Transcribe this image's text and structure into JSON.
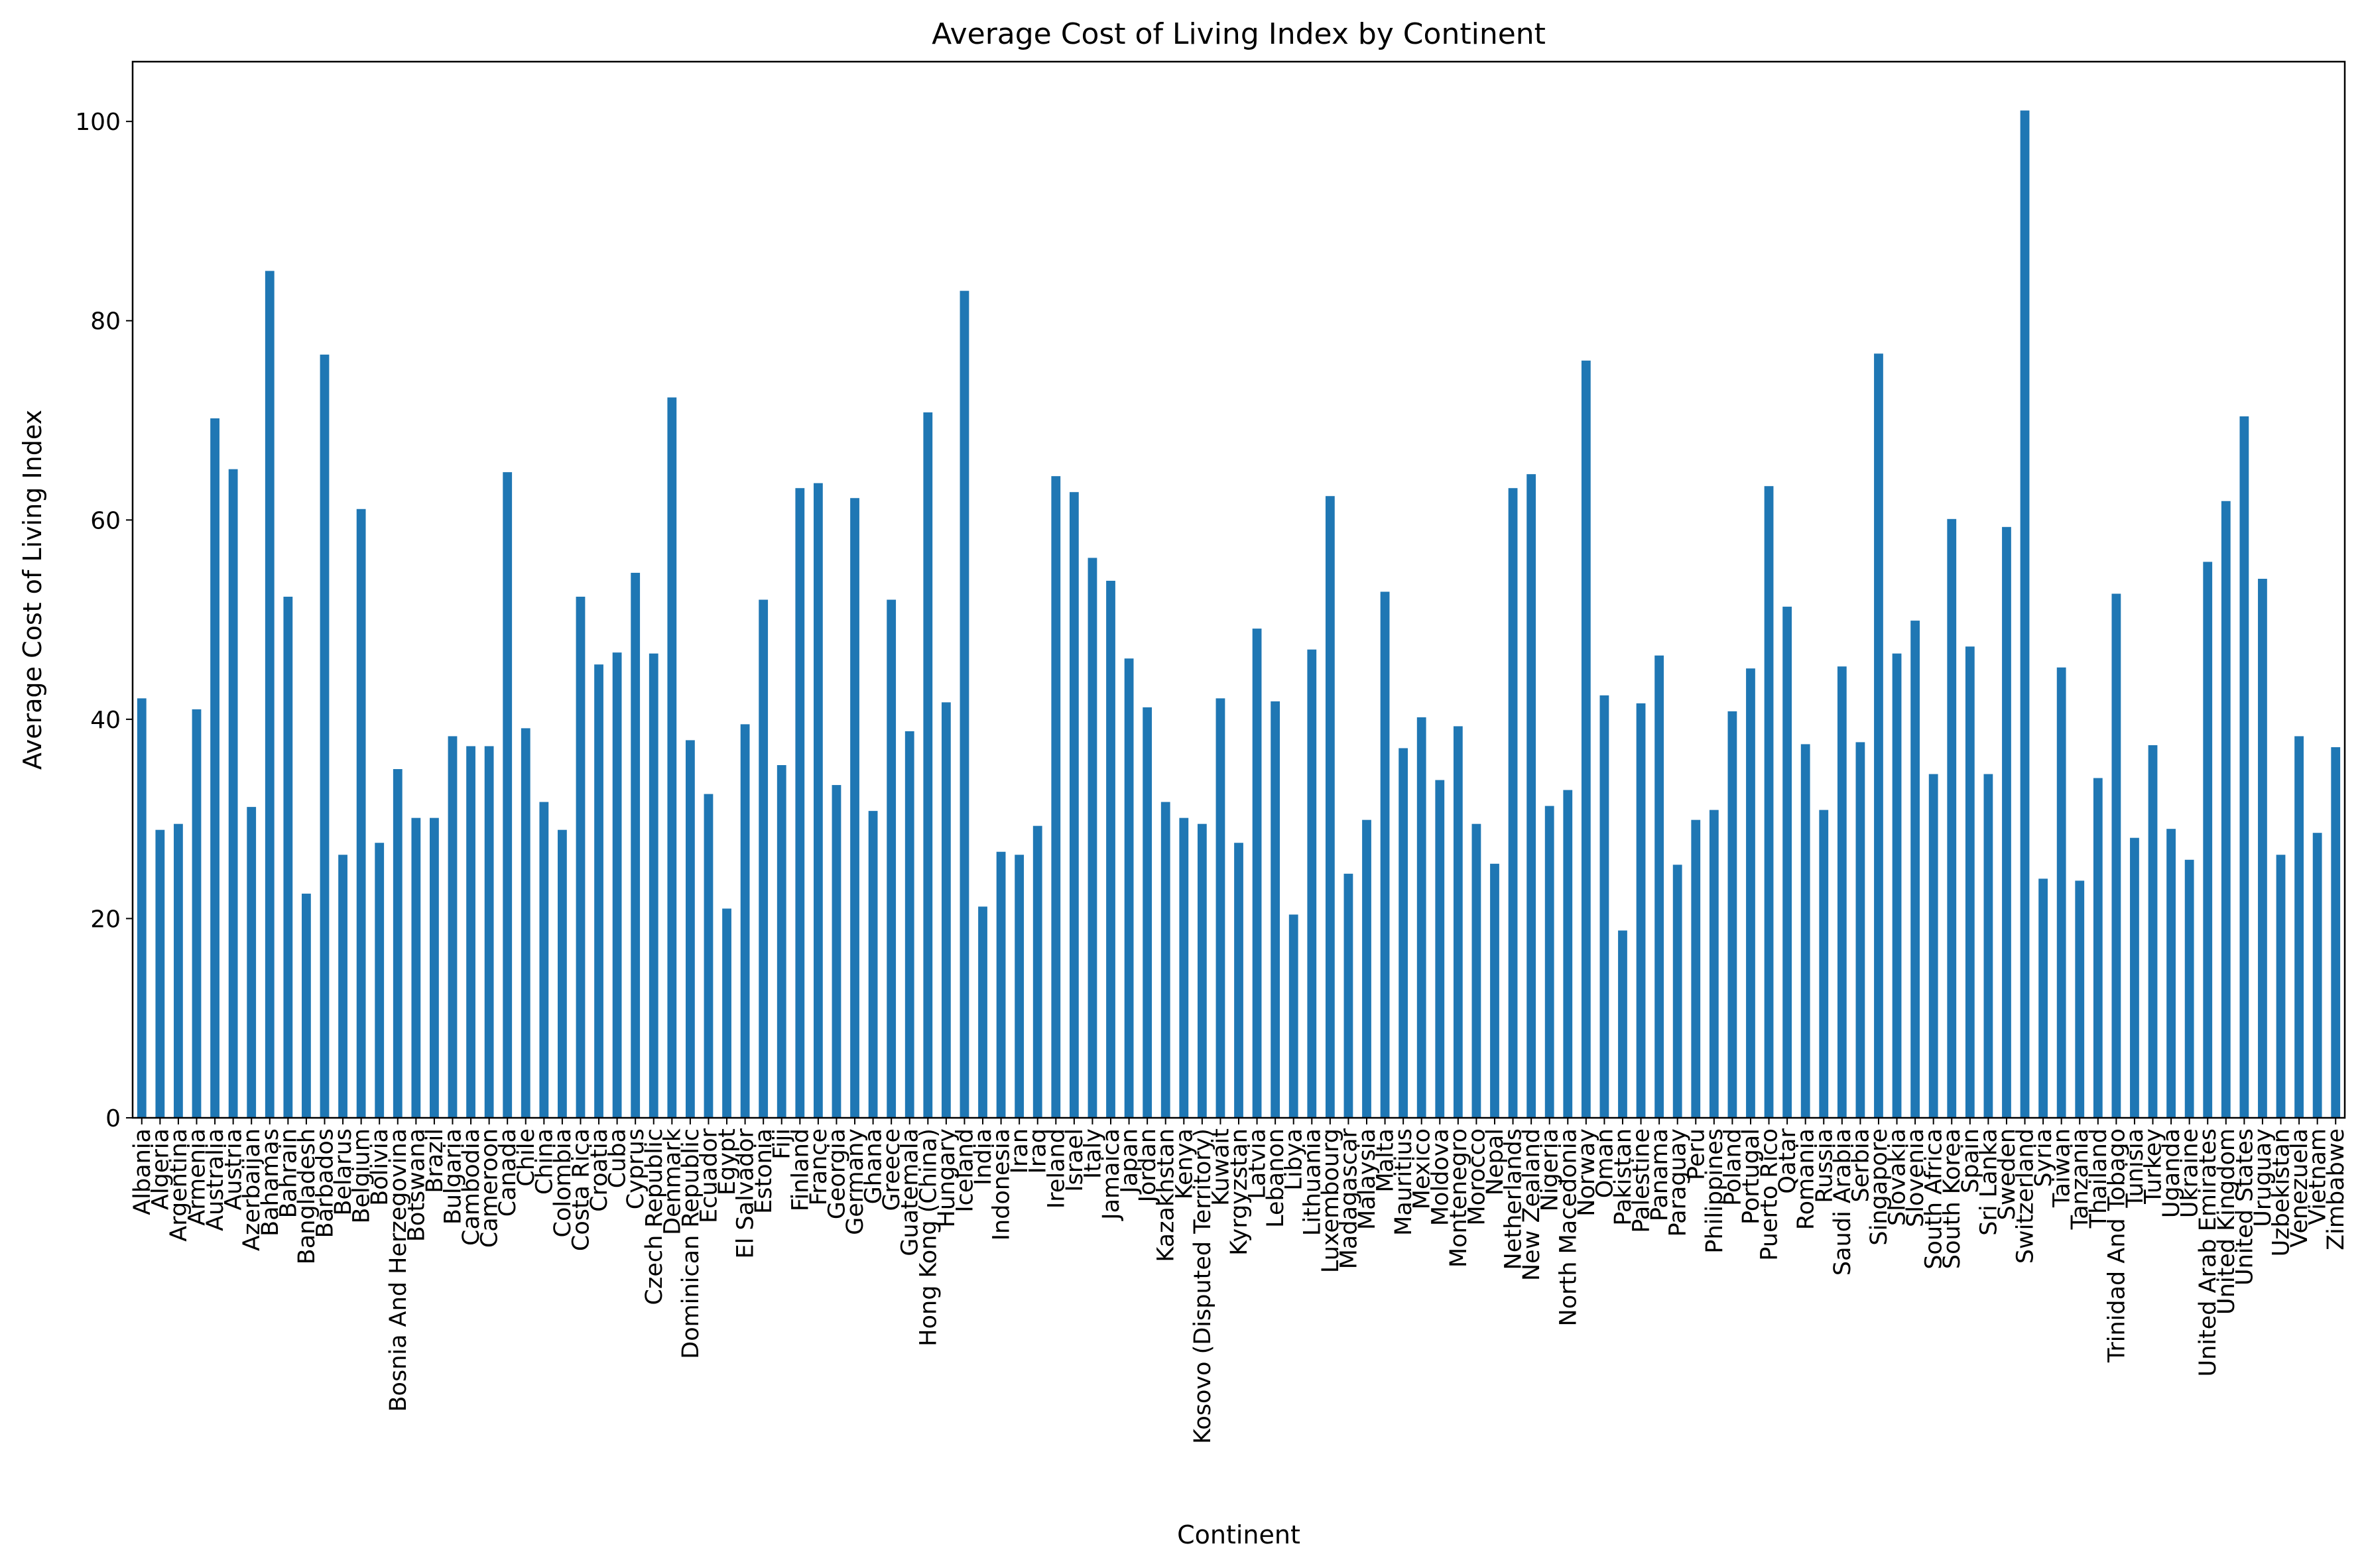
{
  "chart_data": {
    "type": "bar",
    "title": "Average Cost of Living Index by Continent",
    "xlabel": "Continent",
    "ylabel": "Average Cost of Living Index",
    "ylim": [
      0,
      106
    ],
    "yticks": [
      0,
      20,
      40,
      60,
      80,
      100
    ],
    "grid": false,
    "legend": "none",
    "bar_color": "#1f77b4",
    "categories": [
      "Albania",
      "Algeria",
      "Argentina",
      "Armenia",
      "Australia",
      "Austria",
      "Azerbaijan",
      "Bahamas",
      "Bahrain",
      "Bangladesh",
      "Barbados",
      "Belarus",
      "Belgium",
      "Bolivia",
      "Bosnia And Herzegovina",
      "Botswana",
      "Brazil",
      "Bulgaria",
      "Cambodia",
      "Cameroon",
      "Canada",
      "Chile",
      "China",
      "Colombia",
      "Costa Rica",
      "Croatia",
      "Cuba",
      "Cyprus",
      "Czech Republic",
      "Denmark",
      "Dominican Republic",
      "Ecuador",
      "Egypt",
      "El Salvador",
      "Estonia",
      "Fiji",
      "Finland",
      "France",
      "Georgia",
      "Germany",
      "Ghana",
      "Greece",
      "Guatemala",
      "Hong Kong (China)",
      "Hungary",
      "Iceland",
      "India",
      "Indonesia",
      "Iran",
      "Iraq",
      "Ireland",
      "Israel",
      "Italy",
      "Jamaica",
      "Japan",
      "Jordan",
      "Kazakhstan",
      "Kenya",
      "Kosovo (Disputed Territory)",
      "Kuwait",
      "Kyrgyzstan",
      "Latvia",
      "Lebanon",
      "Libya",
      "Lithuania",
      "Luxembourg",
      "Madagascar",
      "Malaysia",
      "Malta",
      "Mauritius",
      "Mexico",
      "Moldova",
      "Montenegro",
      "Morocco",
      "Nepal",
      "Netherlands",
      "New Zealand",
      "Nigeria",
      "North Macedonia",
      "Norway",
      "Oman",
      "Pakistan",
      "Palestine",
      "Panama",
      "Paraguay",
      "Peru",
      "Philippines",
      "Poland",
      "Portugal",
      "Puerto Rico",
      "Qatar",
      "Romania",
      "Russia",
      "Saudi Arabia",
      "Serbia",
      "Singapore",
      "Slovakia",
      "Slovenia",
      "South Africa",
      "South Korea",
      "Spain",
      "Sri Lanka",
      "Sweden",
      "Switzerland",
      "Syria",
      "Taiwan",
      "Tanzania",
      "Thailand",
      "Trinidad And Tobago",
      "Tunisia",
      "Turkey",
      "Uganda",
      "Ukraine",
      "United Arab Emirates",
      "United Kingdom",
      "United States",
      "Uruguay",
      "Uzbekistan",
      "Venezuela",
      "Vietnam",
      "Zimbabwe"
    ],
    "values": [
      42.1,
      28.9,
      29.5,
      41.0,
      70.2,
      65.1,
      31.2,
      85.0,
      52.3,
      22.5,
      76.6,
      26.4,
      61.1,
      27.6,
      35.0,
      30.1,
      30.1,
      38.3,
      37.3,
      37.3,
      64.8,
      39.1,
      31.7,
      28.9,
      52.3,
      45.5,
      46.7,
      54.7,
      46.6,
      72.3,
      37.9,
      32.5,
      21.0,
      39.5,
      52.0,
      35.4,
      63.2,
      63.7,
      33.4,
      62.2,
      30.8,
      52.0,
      38.8,
      70.8,
      41.7,
      83.0,
      21.2,
      26.7,
      26.4,
      29.3,
      64.4,
      62.8,
      56.2,
      53.9,
      46.1,
      41.2,
      31.7,
      30.1,
      29.5,
      42.1,
      27.6,
      49.1,
      41.8,
      20.4,
      47.0,
      62.4,
      24.5,
      29.9,
      52.8,
      37.1,
      40.2,
      33.9,
      39.3,
      29.5,
      25.5,
      63.2,
      64.6,
      31.3,
      32.9,
      76.0,
      42.4,
      18.8,
      41.6,
      46.4,
      25.4,
      29.9,
      30.9,
      40.8,
      45.1,
      63.4,
      51.3,
      37.5,
      30.9,
      45.3,
      37.7,
      76.7,
      46.6,
      49.9,
      34.5,
      60.1,
      47.3,
      34.5,
      59.3,
      101.1,
      24.0,
      45.2,
      23.8,
      34.1,
      52.6,
      28.1,
      37.4,
      29.0,
      25.9,
      55.8,
      61.9,
      70.4,
      54.1,
      26.4,
      38.3,
      28.6,
      37.2
    ]
  }
}
